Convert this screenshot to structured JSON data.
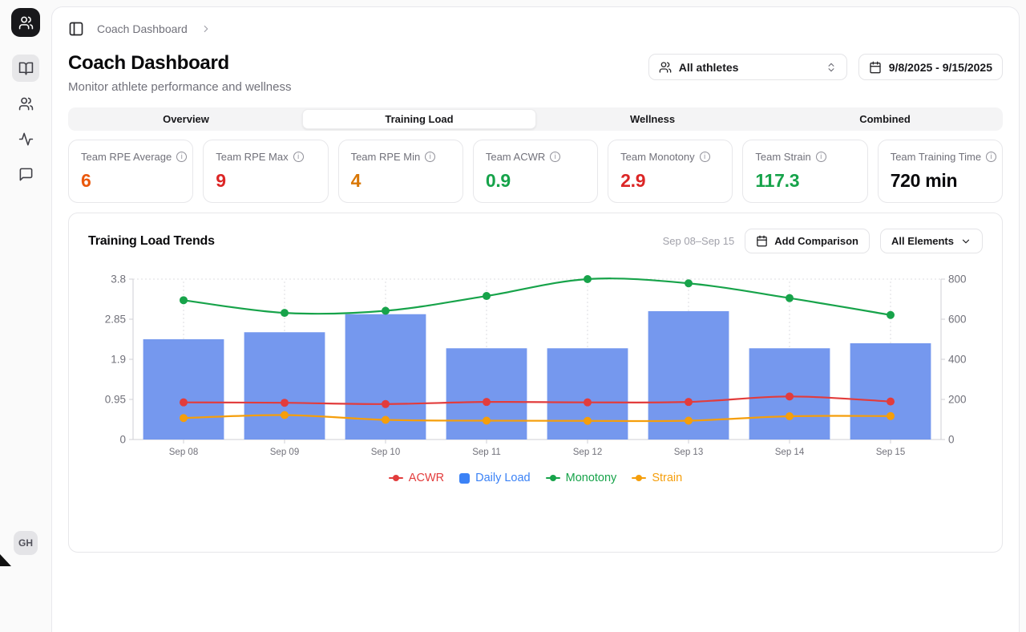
{
  "app": {
    "breadcrumb": "Coach Dashboard",
    "avatar_initials": "GH"
  },
  "sidebar": {
    "items": [
      {
        "name": "library",
        "icon": "book-open-icon",
        "active": true
      },
      {
        "name": "athletes",
        "icon": "users-icon",
        "active": false
      },
      {
        "name": "activity",
        "icon": "activity-icon",
        "active": false
      },
      {
        "name": "messages",
        "icon": "message-icon",
        "active": false
      }
    ]
  },
  "page": {
    "title": "Coach Dashboard",
    "subtitle": "Monitor athlete performance and wellness",
    "athlete_filter_value": "All athletes",
    "date_range_value": "9/8/2025 - 9/15/2025"
  },
  "tabs": [
    {
      "label": "Overview",
      "active": false
    },
    {
      "label": "Training Load",
      "active": true
    },
    {
      "label": "Wellness",
      "active": false
    },
    {
      "label": "Combined",
      "active": false
    }
  ],
  "stats": [
    {
      "label": "Team RPE Average",
      "value": "6",
      "color": "#ea580c"
    },
    {
      "label": "Team RPE Max",
      "value": "9",
      "color": "#dc2626"
    },
    {
      "label": "Team RPE Min",
      "value": "4",
      "color": "#d97706"
    },
    {
      "label": "Team ACWR",
      "value": "0.9",
      "color": "#16a34a"
    },
    {
      "label": "Team Monotony",
      "value": "2.9",
      "color": "#dc2626"
    },
    {
      "label": "Team Strain",
      "value": "117.3",
      "color": "#16a34a"
    },
    {
      "label": "Team Training Time",
      "value": "720 min",
      "color": "#09090b"
    }
  ],
  "chart_card": {
    "title": "Training Load Trends",
    "range_label": "Sep 08–Sep 15",
    "add_comparison_label": "Add Comparison",
    "elements_filter_label": "All Elements"
  },
  "chart_data": {
    "type": "combo",
    "title": "Training Load Trends",
    "categories": [
      "Sep 08",
      "Sep 09",
      "Sep 10",
      "Sep 11",
      "Sep 12",
      "Sep 13",
      "Sep 14",
      "Sep 15"
    ],
    "series": [
      {
        "name": "Daily Load",
        "type": "bar",
        "axis": "right",
        "color": "#7598ee",
        "values": [
          500,
          535,
          625,
          455,
          455,
          640,
          455,
          480
        ]
      },
      {
        "name": "Strain",
        "type": "line",
        "axis": "right",
        "color": "#f59e0b",
        "values": [
          107,
          122,
          98,
          94,
          93,
          94,
          116,
          117
        ]
      },
      {
        "name": "ACWR",
        "type": "line",
        "axis": "left",
        "color": "#e23c3c",
        "values": [
          0.88,
          0.87,
          0.84,
          0.89,
          0.88,
          0.89,
          1.02,
          0.9
        ]
      },
      {
        "name": "Monotony",
        "type": "line",
        "axis": "left",
        "color": "#17a34a",
        "values": [
          3.3,
          3.0,
          3.05,
          3.4,
          3.8,
          3.7,
          3.35,
          2.95
        ]
      }
    ],
    "left_axis": {
      "max": 3.8,
      "ticks": [
        "0",
        "0.95",
        "1.9",
        "2.85",
        "3.8"
      ],
      "tick_values": [
        0,
        0.95,
        1.9,
        2.85,
        3.8
      ]
    },
    "right_axis": {
      "max": 800,
      "ticks": [
        "0",
        "200",
        "400",
        "600",
        "800"
      ],
      "tick_values": [
        0,
        200,
        400,
        600,
        800
      ]
    },
    "grid": {
      "vertical_dotted": true,
      "top_dotted_line": true
    },
    "legend_position": "bottom",
    "legend": [
      {
        "label": "ACWR",
        "marker": "line",
        "color": "#e23c3c"
      },
      {
        "label": "Daily Load",
        "marker": "square",
        "color": "#3b82f6"
      },
      {
        "label": "Monotony",
        "marker": "line",
        "color": "#17a34a"
      },
      {
        "label": "Strain",
        "marker": "line",
        "color": "#f59e0b"
      }
    ]
  }
}
